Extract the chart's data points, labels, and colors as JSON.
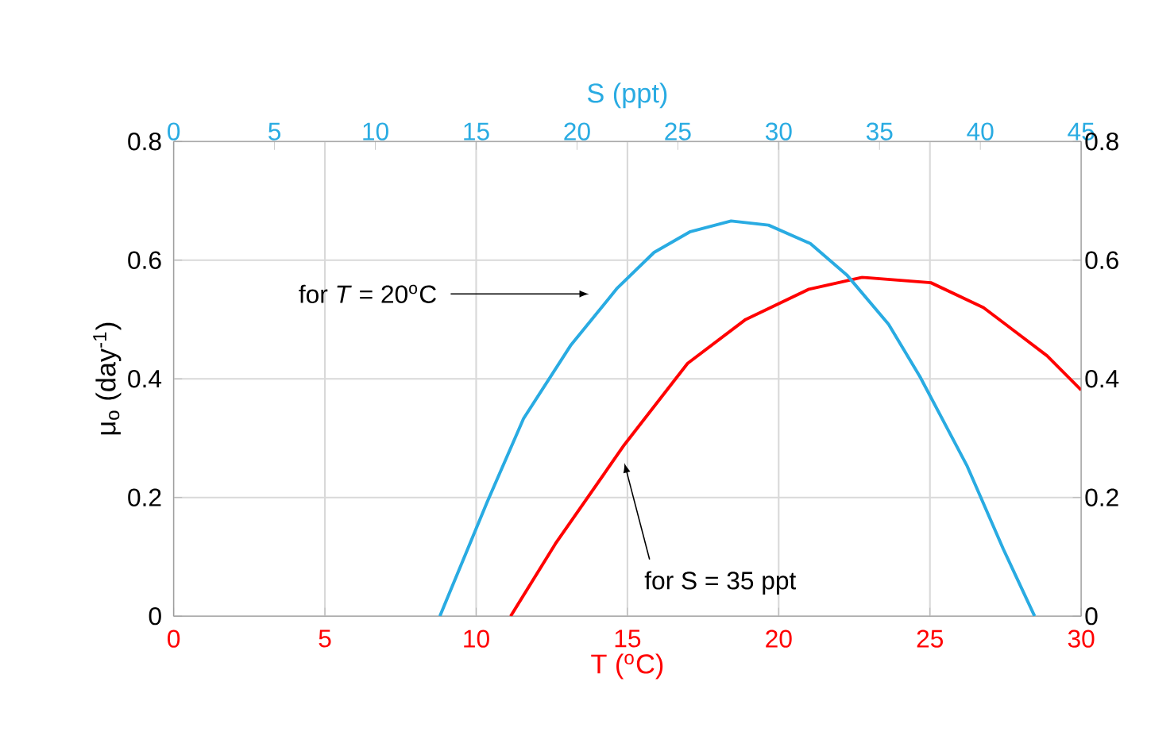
{
  "chart_data": {
    "type": "line",
    "xlabel": "T ($^{o}$C)",
    "x2label": "S (ppt)",
    "ylabel": "μ$_{o}$ (day$^{-1}$)",
    "xlim": [
      0,
      30
    ],
    "xticks": [
      0,
      5,
      10,
      15,
      20,
      25,
      30
    ],
    "x2lim": [
      0,
      45
    ],
    "x2ticks": [
      0,
      5,
      10,
      15,
      20,
      25,
      30,
      35,
      40,
      45
    ],
    "ylim": [
      0,
      0.8
    ],
    "yticks": [
      0,
      0.2,
      0.4,
      0.6,
      0.8
    ],
    "y2lim": [
      0,
      0.8
    ],
    "y2ticks": [
      0,
      0.2,
      0.4,
      0.6,
      0.8
    ],
    "grid": true,
    "series": [
      {
        "color": "#29abe2",
        "axis": "x2",
        "x": [
          13.2,
          15.54,
          17.35,
          19.68,
          22.0,
          23.82,
          25.62,
          27.64,
          29.5,
          31.57,
          33.38,
          35.45,
          37.0,
          39.33,
          41.14,
          42.69
        ],
        "values": [
          0,
          0.192,
          0.333,
          0.456,
          0.553,
          0.613,
          0.648,
          0.666,
          0.659,
          0.628,
          0.575,
          0.492,
          0.404,
          0.254,
          0.113,
          0
        ]
      },
      {
        "color": "#ff0000",
        "x": [
          11.14,
          12.62,
          14.9,
          16.99,
          18.91,
          21.0,
          22.76,
          25.03,
          26.77,
          28.87,
          30
        ],
        "values": [
          0,
          0.122,
          0.289,
          0.426,
          0.5,
          0.551,
          0.571,
          0.562,
          0.52,
          0.439,
          0.381
        ]
      }
    ],
    "annotations": [
      "for *T* = 20$^{o}$C",
      "for S = 35 ppt"
    ]
  }
}
